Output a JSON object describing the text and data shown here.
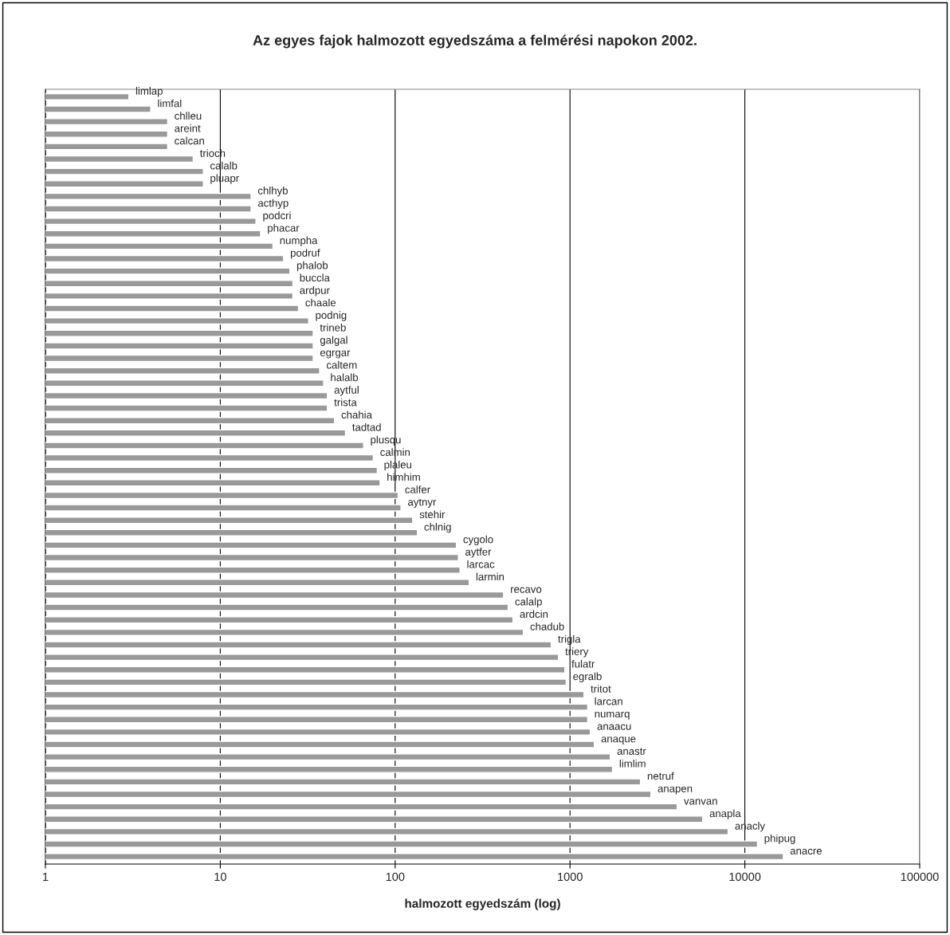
{
  "chart_data": {
    "type": "bar",
    "orientation": "horizontal",
    "log": "x",
    "title": "Az egyes fajok halmozott egyedszáma a felmérési napokon 2002.",
    "xlabel": "halmozott egyedszám (log)",
    "categories": [
      "limlap",
      "limfal",
      "chlleu",
      "areint",
      "calcan",
      "trioch",
      "calalb",
      "pluapr",
      "chlhyb",
      "acthyp",
      "podcri",
      "phacar",
      "numpha",
      "podruf",
      "phalob",
      "buccla",
      "ardpur",
      "chaale",
      "podnig",
      "trineb",
      "galgal",
      "egrgar",
      "caltem",
      "halalb",
      "aytful",
      "trista",
      "chahia",
      "tadtad",
      "plusqu",
      "calmin",
      "plaleu",
      "himhim",
      "calfer",
      "aytnyr",
      "stehir",
      "chlnig",
      "cygolo",
      "aytfer",
      "larcac",
      "larmin",
      "recavo",
      "calalp",
      "ardcin",
      "chadub",
      "trigla",
      "triery",
      "fulatr",
      "egralb",
      "tritot",
      "larcan",
      "numarq",
      "anaacu",
      "anaque",
      "anastr",
      "limlim",
      "netruf",
      "anapen",
      "vanvan",
      "anapla",
      "anacly",
      "phipug",
      "anacre"
    ],
    "values": [
      3,
      4,
      5,
      5,
      5,
      7,
      8,
      8,
      15,
      15,
      16,
      17,
      20,
      23,
      25,
      26,
      26,
      28,
      32,
      34,
      34,
      34,
      37,
      39,
      41,
      41,
      45,
      52,
      66,
      75,
      79,
      82,
      104,
      108,
      126,
      134,
      224,
      230,
      235,
      265,
      417,
      443,
      472,
      541,
      781,
      859,
      934,
      950,
      1202,
      1262,
      1262,
      1307,
      1377,
      1700,
      1750,
      2530,
      2900,
      4100,
      5740,
      8020,
      11800,
      16600
    ],
    "color": "#999999",
    "xlim": [
      1,
      100000
    ],
    "xticks": [
      1,
      10,
      100,
      1000,
      10000,
      100000
    ],
    "grid": "x",
    "legend": false,
    "tick_labels": "x"
  }
}
